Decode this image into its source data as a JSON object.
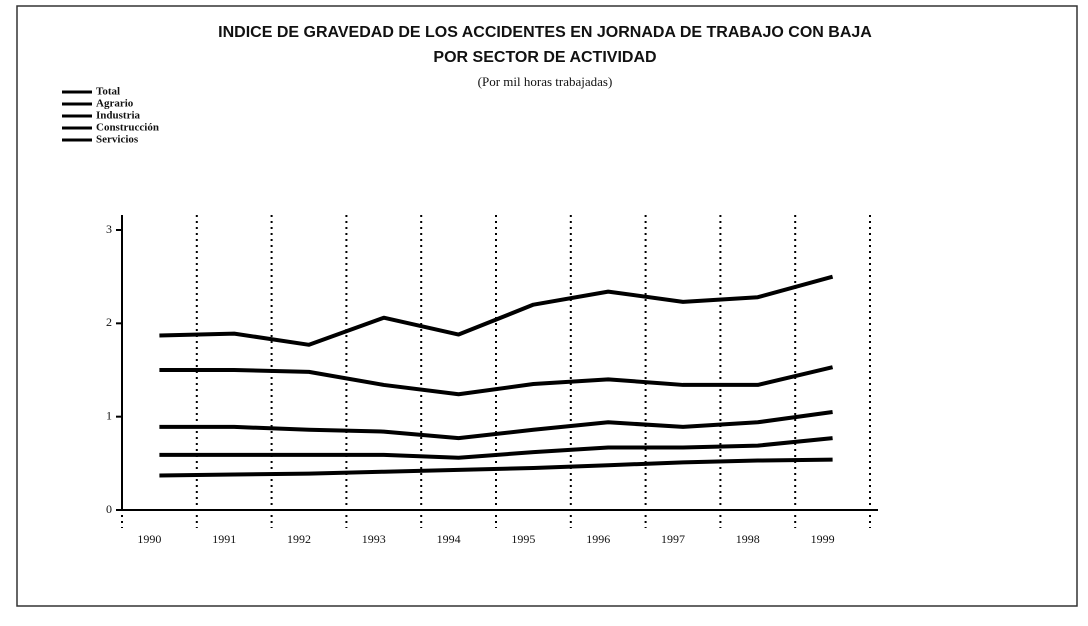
{
  "chart_data": {
    "type": "line",
    "title": [
      "INDICE DE GRAVEDAD DE LOS ACCIDENTES EN JORNADA DE TRABAJO CON BAJA",
      "POR SECTOR DE ACTIVIDAD"
    ],
    "subtitle": "(Por mil horas trabajadas)",
    "categories": [
      "1990",
      "1991",
      "1992",
      "1993",
      "1994",
      "1995",
      "1996",
      "1997",
      "1998",
      "1999"
    ],
    "series": [
      {
        "name": "Total",
        "color": "#000000",
        "values": [
          0.59,
          0.59,
          0.59,
          0.59,
          0.56,
          0.62,
          0.67,
          0.67,
          0.69,
          0.77
        ]
      },
      {
        "name": "Agrario",
        "color": "#000000",
        "values": [
          1.5,
          1.5,
          1.48,
          1.34,
          1.24,
          1.35,
          1.4,
          1.34,
          1.34,
          1.53
        ]
      },
      {
        "name": "Industria",
        "color": "#000000",
        "values": [
          0.89,
          0.89,
          0.86,
          0.84,
          0.77,
          0.86,
          0.94,
          0.89,
          0.94,
          1.05
        ]
      },
      {
        "name": "Construcción",
        "color": "#000000",
        "values": [
          1.87,
          1.89,
          1.77,
          2.06,
          1.88,
          2.2,
          2.34,
          2.23,
          2.28,
          2.5
        ]
      },
      {
        "name": "Servicios",
        "color": "#000000",
        "values": [
          0.37,
          0.38,
          0.39,
          0.41,
          0.43,
          0.45,
          0.48,
          0.51,
          0.53,
          0.54
        ]
      }
    ],
    "ylim": [
      0,
      3
    ],
    "yticks": [
      0,
      1,
      2,
      3
    ],
    "legend": "top-left"
  }
}
